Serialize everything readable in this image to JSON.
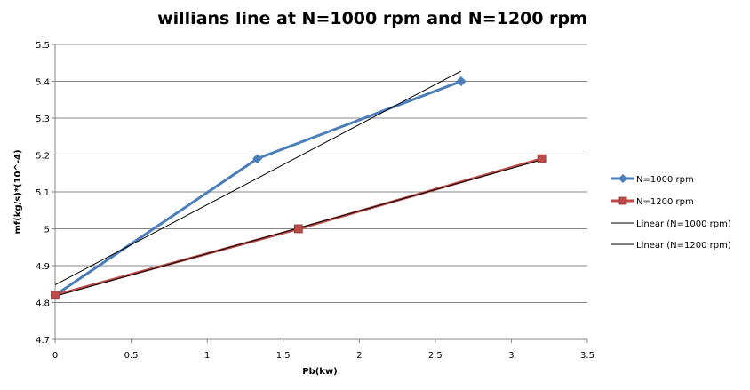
{
  "chart_data": {
    "type": "line",
    "title": "willians line at N=1000 rpm and N=1200 rpm",
    "xlabel": "Pb(kw)",
    "ylabel": "mf(kg/s)*(10^-4)",
    "xlim": [
      0,
      3.5
    ],
    "ylim": [
      4.7,
      5.5
    ],
    "x_ticks": [
      "0",
      "0.5",
      "1",
      "1.5",
      "2",
      "2.5",
      "3",
      "3.5"
    ],
    "y_ticks": [
      "4.7",
      "4.8",
      "4.9",
      "5",
      "5.1",
      "5.2",
      "5.3",
      "5.4",
      "5.5"
    ],
    "grid": "horizontal",
    "legend_position": "right",
    "series": [
      {
        "name": "N=1000 rpm",
        "marker": "diamond",
        "color": "#4A7EBB",
        "x": [
          0,
          1.33,
          2.67
        ],
        "y": [
          4.82,
          5.19,
          5.4
        ]
      },
      {
        "name": "N=1200 rpm",
        "marker": "square",
        "color": "#BE4B48",
        "x": [
          0,
          1.6,
          3.2
        ],
        "y": [
          4.82,
          5.0,
          5.19
        ]
      }
    ],
    "trendlines": [
      {
        "name": "Linear (N=1000 rpm)",
        "color": "#000000",
        "x": [
          0,
          2.67
        ],
        "y": [
          4.848,
          5.428
        ]
      },
      {
        "name": "Linear (N=1200 rpm)",
        "color": "#000000",
        "x": [
          0,
          3.2
        ],
        "y": [
          4.817,
          5.187
        ]
      }
    ]
  }
}
